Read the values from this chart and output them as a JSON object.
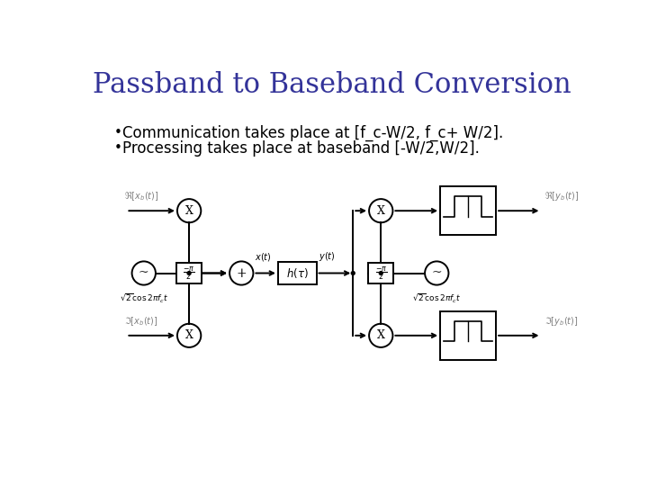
{
  "title": "Passband to Baseband Conversion",
  "title_color": "#333399",
  "title_fontsize": 22,
  "bullet1": "Communication takes place at [f_c-W/2, f_c+ W/2].",
  "bullet2": "Processing takes place at baseband [-W/2,W/2].",
  "bullet_fontsize": 12,
  "bg_color": "#ffffff",
  "diagram_color": "#000000",
  "lw": 1.4
}
